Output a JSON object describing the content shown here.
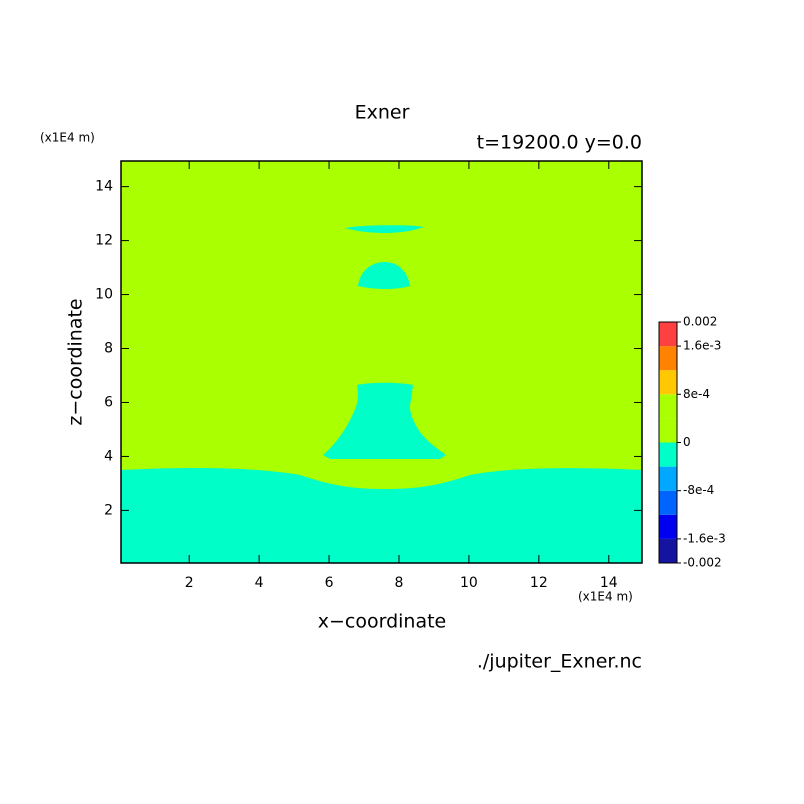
{
  "chart_data": {
    "type": "contour",
    "title": "Exner",
    "subtitle": "t=19200.0 y=0.0",
    "x_label": "x−coordinate",
    "y_label": "z−coordinate",
    "x_unit": "(x1E4 m)",
    "y_unit": "(x1E4 m)",
    "source": "./jupiter_Exner.nc",
    "xlim": [
      0.05,
      14.95
    ],
    "ylim": [
      0.05,
      14.95
    ],
    "xticks": [
      2,
      4,
      6,
      8,
      10,
      12,
      14
    ],
    "yticks": [
      2,
      4,
      6,
      8,
      10,
      12,
      14
    ],
    "colorbar": {
      "levels": [
        -0.002,
        -0.0016,
        -0.0012,
        -0.0008,
        -0.0004,
        0,
        0.0004,
        0.0008,
        0.0012,
        0.0016,
        0.002
      ],
      "colors": [
        "#1414a0",
        "#0000f0",
        "#0064ff",
        "#00a8ff",
        "#00ffc8",
        "#aaff00",
        "#aaff00",
        "#ffc800",
        "#ff8200",
        "#ff4040"
      ],
      "ticks": [
        -0.002,
        {
          "value": -0.0016,
          "label": "-1.6e-3"
        },
        {
          "value": -0.0008,
          "label": "-8e-4"
        },
        0,
        {
          "value": 0.0008,
          "label": "8e-4"
        },
        {
          "value": 0.0016,
          "label": "1.6e-3"
        },
        0.002
      ]
    }
  }
}
